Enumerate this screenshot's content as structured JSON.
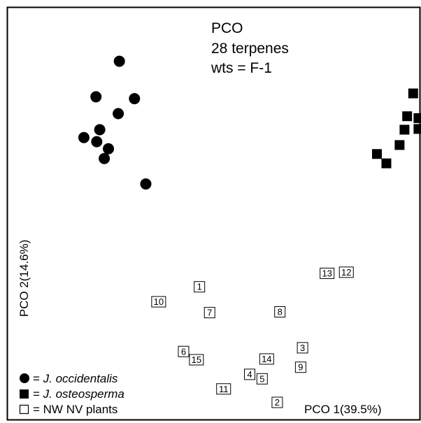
{
  "chart_data": {
    "type": "scatter",
    "title_lines": [
      "PCO",
      "28 terpenes",
      "wts = F-1"
    ],
    "xlabel": "PCO 1(39.5%)",
    "ylabel": "PCO 2(14.6%)",
    "xlim": [
      0,
      100
    ],
    "ylim": [
      0,
      100
    ],
    "grid": false,
    "legend_position": "bottom-left",
    "series": [
      {
        "name": "J. occidentalis",
        "legend_prefix": "= ",
        "marker": "filled-circle",
        "points": [
          {
            "x": 20.5,
            "y": 92.6
          },
          {
            "x": 14.3,
            "y": 83.1
          },
          {
            "x": 24.5,
            "y": 82.6
          },
          {
            "x": 20.2,
            "y": 78.6
          },
          {
            "x": 15.3,
            "y": 74.3
          },
          {
            "x": 11.1,
            "y": 72.2
          },
          {
            "x": 14.5,
            "y": 71.1
          },
          {
            "x": 17.6,
            "y": 69.2
          },
          {
            "x": 16.5,
            "y": 66.6
          },
          {
            "x": 27.5,
            "y": 59.8
          }
        ]
      },
      {
        "name": "J. osteosperma",
        "legend_prefix": "= ",
        "marker": "filled-square",
        "points": [
          {
            "x": 98.3,
            "y": 84.0
          },
          {
            "x": 96.7,
            "y": 77.9
          },
          {
            "x": 99.7,
            "y": 77.4
          },
          {
            "x": 96.0,
            "y": 74.3
          },
          {
            "x": 99.7,
            "y": 74.5
          },
          {
            "x": 94.7,
            "y": 70.2
          },
          {
            "x": 88.7,
            "y": 67.8
          },
          {
            "x": 91.2,
            "y": 65.3
          }
        ]
      },
      {
        "name": "NW NV plants",
        "legend_prefix": "= ",
        "marker": "open-square-labeled",
        "points": [
          {
            "x": 41.7,
            "y": 32.3,
            "label": "1"
          },
          {
            "x": 62.3,
            "y": 1.4,
            "label": "2"
          },
          {
            "x": 69.0,
            "y": 16.0,
            "label": "3"
          },
          {
            "x": 55.0,
            "y": 8.9,
            "label": "4"
          },
          {
            "x": 58.3,
            "y": 7.7,
            "label": "5"
          },
          {
            "x": 37.5,
            "y": 15.0,
            "label": "6"
          },
          {
            "x": 44.4,
            "y": 25.4,
            "label": "7"
          },
          {
            "x": 63.0,
            "y": 25.6,
            "label": "8"
          },
          {
            "x": 68.5,
            "y": 10.8,
            "label": "9"
          },
          {
            "x": 30.9,
            "y": 28.3,
            "label": "10"
          },
          {
            "x": 48.1,
            "y": 5.0,
            "label": "11"
          },
          {
            "x": 80.6,
            "y": 36.2,
            "label": "12"
          },
          {
            "x": 75.5,
            "y": 35.9,
            "label": "13"
          },
          {
            "x": 59.5,
            "y": 13.0,
            "label": "14"
          },
          {
            "x": 40.9,
            "y": 12.8,
            "label": "15"
          }
        ]
      }
    ]
  }
}
